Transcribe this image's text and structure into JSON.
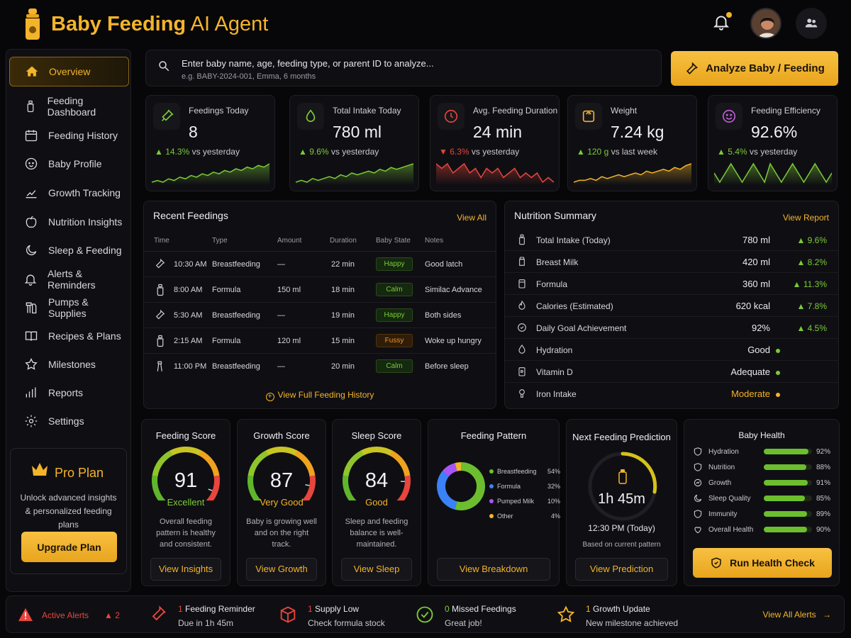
{
  "app": {
    "title_bold": "Baby Feeding",
    "title_thin": " AI Agent"
  },
  "colors": {
    "accent": "#f4b42a",
    "positive": "#7ccb36",
    "negative": "#e8453c",
    "warning": "#f2922a"
  },
  "sidebar": {
    "items": [
      {
        "label": "Overview",
        "icon": "home-icon",
        "active": true
      },
      {
        "label": "Feeding Dashboard",
        "icon": "bottle-icon"
      },
      {
        "label": "Feeding History",
        "icon": "calendar-icon"
      },
      {
        "label": "Baby Profile",
        "icon": "baby-face-icon"
      },
      {
        "label": "Growth Tracking",
        "icon": "growth-chart-icon"
      },
      {
        "label": "Nutrition Insights",
        "icon": "apple-icon"
      },
      {
        "label": "Sleep & Feeding",
        "icon": "moon-icon"
      },
      {
        "label": "Alerts & Reminders",
        "icon": "bell-icon"
      },
      {
        "label": "Pumps & Supplies",
        "icon": "pump-icon"
      },
      {
        "label": "Recipes & Plans",
        "icon": "book-icon"
      },
      {
        "label": "Milestones",
        "icon": "star-icon"
      },
      {
        "label": "Reports",
        "icon": "bar-chart-icon"
      },
      {
        "label": "Settings",
        "icon": "gear-icon"
      }
    ],
    "pro": {
      "title": "Pro Plan",
      "desc": "Unlock advanced insights & personalized feeding plans",
      "button": "Upgrade Plan"
    }
  },
  "search": {
    "line1": "Enter baby name, age, feeding type, or parent ID to analyze...",
    "line2": "e.g. BABY-2024-001, Emma, 6 months"
  },
  "analyze_button": "Analyze Baby / Feeding",
  "stats": [
    {
      "label": "Feedings Today",
      "value": "8",
      "change": "▲ 14.3%",
      "change_suffix": " vs yesterday",
      "dir": "up",
      "icon": "bottle-icon",
      "color": "#7ccb36",
      "spark": [
        3,
        4,
        3,
        5,
        4,
        6,
        5,
        7,
        6,
        8,
        7,
        9,
        8,
        10,
        9,
        11,
        10,
        12,
        11,
        13,
        12,
        14
      ]
    },
    {
      "label": "Total Intake Today",
      "value": "780 ml",
      "change": "▲ 9.6%",
      "change_suffix": " vs yesterday",
      "dir": "up",
      "icon": "droplet-icon",
      "color": "#7ccb36",
      "spark": [
        3,
        4,
        3,
        5,
        4,
        5,
        6,
        5,
        7,
        6,
        8,
        7,
        8,
        9,
        8,
        10,
        9,
        11,
        10,
        11,
        12,
        13
      ]
    },
    {
      "label": "Avg. Feeding Duration",
      "value": "24 min",
      "change": "▼ 6.3%",
      "change_suffix": " vs yesterday",
      "dir": "down",
      "icon": "clock-icon",
      "color": "#e8453c",
      "spark": [
        10,
        9,
        10,
        8,
        9,
        10,
        8,
        9,
        7,
        9,
        8,
        9,
        7,
        8,
        9,
        7,
        8,
        7,
        8,
        6,
        7,
        6
      ]
    },
    {
      "label": "Weight",
      "value": "7.24 kg",
      "change": "▲ 120 g",
      "change_suffix": " vs last week",
      "dir": "up",
      "icon": "scale-icon",
      "color": "#f4b42a",
      "spark": [
        3,
        4,
        4,
        5,
        4,
        6,
        5,
        6,
        7,
        6,
        7,
        8,
        7,
        9,
        8,
        9,
        10,
        9,
        11,
        10,
        12,
        13
      ]
    },
    {
      "label": "Feeding Efficiency",
      "value": "92.6%",
      "change": "▲ 5.4%",
      "change_suffix": " vs yesterday",
      "dir": "up",
      "icon": "smile-icon",
      "color": "#7ccb36",
      "spark": [
        8,
        7,
        8,
        9,
        8,
        7,
        8,
        9,
        8,
        7,
        9,
        8,
        7,
        8,
        9,
        8,
        7,
        8,
        9,
        8,
        7,
        8
      ]
    }
  ],
  "recent": {
    "title": "Recent Feedings",
    "link": "View All",
    "headers": [
      "Time",
      "Type",
      "Amount",
      "Duration",
      "Baby State",
      "Notes"
    ],
    "rows": [
      {
        "time": "10:30 AM",
        "type": "Breastfeeding",
        "amount": "—",
        "duration": "22 min",
        "state": "Happy",
        "state_color": "green",
        "notes": "Good latch"
      },
      {
        "time": "8:00 AM",
        "type": "Formula",
        "amount": "150 ml",
        "duration": "18 min",
        "state": "Calm",
        "state_color": "green",
        "notes": "Similac Advance"
      },
      {
        "time": "5:30 AM",
        "type": "Breastfeeding",
        "amount": "—",
        "duration": "19 min",
        "state": "Happy",
        "state_color": "green",
        "notes": "Both sides"
      },
      {
        "time": "2:15 AM",
        "type": "Formula",
        "amount": "120 ml",
        "duration": "15 min",
        "state": "Fussy",
        "state_color": "orange",
        "notes": "Woke up hungry"
      },
      {
        "time": "11:00 PM",
        "type": "Breastfeeding",
        "amount": "—",
        "duration": "20 min",
        "state": "Calm",
        "state_color": "green",
        "notes": "Before sleep"
      }
    ],
    "footer": "View Full Feeding History"
  },
  "nutrition": {
    "title": "Nutrition Summary",
    "link": "View Report",
    "rows": [
      {
        "label": "Total Intake (Today)",
        "value": "780 ml",
        "change": "▲ 9.6%"
      },
      {
        "label": "Breast Milk",
        "value": "420 ml",
        "change": "▲ 8.2%"
      },
      {
        "label": "Formula",
        "value": "360 ml",
        "change": "▲ 11.3%"
      },
      {
        "label": "Calories (Estimated)",
        "value": "620 kcal",
        "change": "▲ 7.8%"
      },
      {
        "label": "Daily Goal Achievement",
        "value": "92%",
        "change": "▲ 4.5%"
      },
      {
        "label": "Hydration",
        "value": "Good",
        "status": "green"
      },
      {
        "label": "Vitamin D",
        "value": "Adequate",
        "status": "green"
      },
      {
        "label": "Iron Intake",
        "value": "Moderate",
        "status": "amber"
      }
    ]
  },
  "scores": [
    {
      "title": "Feeding Score",
      "value": "91",
      "fraction": 0.91,
      "label": "Excellent",
      "desc": "Overall feeding pattern is healthy and consistent.",
      "button": "View Insights"
    },
    {
      "title": "Growth Score",
      "value": "87",
      "fraction": 0.87,
      "label": "Very Good",
      "desc": "Baby is growing well and on the right track.",
      "button": "View Growth"
    },
    {
      "title": "Sleep Score",
      "value": "84",
      "fraction": 0.84,
      "label": "Good",
      "desc": "Sleep and feeding balance is well-maintained.",
      "button": "View Sleep"
    }
  ],
  "pattern": {
    "title": "Feeding Pattern",
    "button": "View Breakdown",
    "slices": [
      {
        "name": "Breastfeeding",
        "pct": "54%",
        "value": 54,
        "color": "#6cbe2e"
      },
      {
        "name": "Formula",
        "pct": "32%",
        "value": 32,
        "color": "#3b82f6"
      },
      {
        "name": "Pumped Milk",
        "pct": "10%",
        "value": 10,
        "color": "#a855f7"
      },
      {
        "name": "Other",
        "pct": "4%",
        "value": 4,
        "color": "#f4b42a"
      }
    ]
  },
  "prediction": {
    "title": "Next Feeding Prediction",
    "countdown": "1h 45m",
    "time": "12:30 PM (Today)",
    "note": "Based on current pattern",
    "button": "View Prediction"
  },
  "health": {
    "title": "Baby Health",
    "button": "Run Health Check",
    "rows": [
      {
        "label": "Hydration",
        "pct": "92%",
        "value": 92
      },
      {
        "label": "Nutrition",
        "pct": "88%",
        "value": 88
      },
      {
        "label": "Growth",
        "pct": "91%",
        "value": 91
      },
      {
        "label": "Sleep Quality",
        "pct": "85%",
        "value": 85
      },
      {
        "label": "Immunity",
        "pct": "89%",
        "value": 89
      },
      {
        "label": "Overall Health",
        "pct": "90%",
        "value": 90
      }
    ]
  },
  "alerts": {
    "label": "Active Alerts",
    "count": "▲ 2",
    "link": "View All Alerts",
    "items": [
      {
        "num": "1",
        "title": " Feeding Reminder",
        "sub": "Due in 1h 45m",
        "num_color": "#e8453c"
      },
      {
        "num": "1",
        "title": " Supply Low",
        "sub": "Check formula stock",
        "num_color": "#e8453c"
      },
      {
        "num": "0",
        "title": " Missed Feedings",
        "sub": "Great job!",
        "num_color": "#7ccb36"
      },
      {
        "num": "1",
        "title": " Growth Update",
        "sub": "New milestone achieved",
        "num_color": "#f4b42a"
      }
    ]
  }
}
